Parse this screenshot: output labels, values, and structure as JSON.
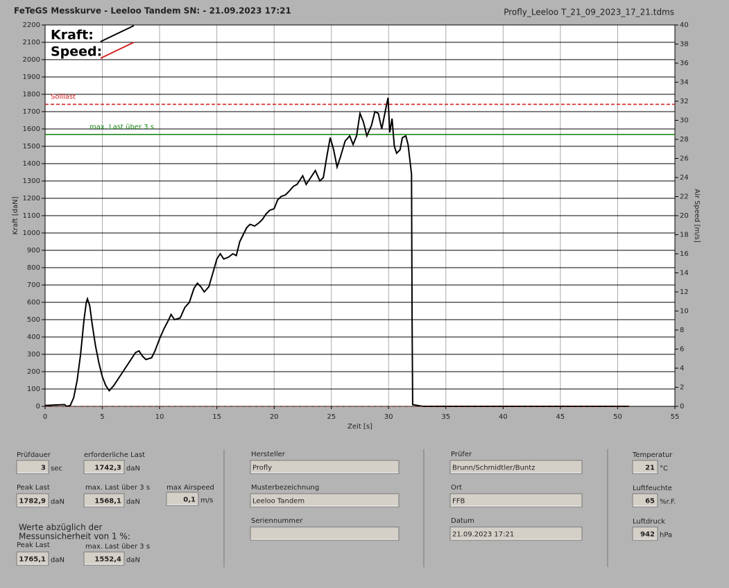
{
  "header": {
    "title": "FeTeGS Messkurve - Leeloo Tandem  SN:  - 21.09.2023 17:21",
    "file": "Profly_Leeloo T_21_09_2023_17_21.tdms"
  },
  "chart_data": {
    "type": "line",
    "xlabel": "Zeit [s]",
    "ylabel": "Kraft [daN]",
    "y2label": "Air Speed [m/s]",
    "xlim": [
      0,
      55
    ],
    "xticks": [
      0,
      5,
      10,
      15,
      20,
      25,
      30,
      35,
      40,
      45,
      50,
      55
    ],
    "ylim": [
      0,
      2200
    ],
    "yticks": [
      0,
      100,
      200,
      300,
      400,
      500,
      600,
      700,
      800,
      900,
      1000,
      1100,
      1200,
      1300,
      1400,
      1500,
      1600,
      1700,
      1800,
      1900,
      2000,
      2100,
      2200
    ],
    "y2lim": [
      0,
      40
    ],
    "y2ticks": [
      0,
      2,
      4,
      6,
      8,
      10,
      12,
      14,
      16,
      18,
      20,
      22,
      24,
      26,
      28,
      30,
      32,
      34,
      36,
      38,
      40
    ],
    "grid": true,
    "series": [
      {
        "name": "Kraft:",
        "color": "#000000",
        "x": [
          0,
          1,
          1.7,
          1.9,
          2.2,
          2.5,
          2.8,
          3.1,
          3.4,
          3.6,
          3.7,
          3.9,
          4.1,
          4.4,
          4.7,
          5,
          5.3,
          5.6,
          6,
          6.5,
          7,
          7.5,
          7.9,
          8.2,
          8.5,
          8.8,
          9.3,
          9.6,
          10,
          10.4,
          10.8,
          11,
          11.3,
          11.8,
          12.2,
          12.6,
          13,
          13.3,
          13.6,
          13.9,
          14.3,
          14.7,
          15,
          15.3,
          15.6,
          16,
          16.4,
          16.7,
          17,
          17.3,
          17.6,
          17.9,
          18.3,
          18.7,
          19,
          19.3,
          19.6,
          20,
          20.3,
          20.6,
          21,
          21.3,
          21.7,
          22,
          22.2,
          22.5,
          22.8,
          23.2,
          23.6,
          24,
          24.3,
          24.6,
          24.9,
          25.2,
          25.5,
          25.8,
          26.2,
          26.6,
          26.9,
          27.2,
          27.5,
          27.8,
          28.1,
          28.5,
          28.8,
          29.1,
          29.4,
          29.7,
          29.95,
          30.1,
          30.3,
          30.5,
          30.7,
          31,
          31.2,
          31.5,
          31.7,
          32,
          32.05,
          32.1,
          32.5,
          33,
          51
        ],
        "values": [
          5,
          8,
          10,
          0,
          5,
          50,
          150,
          300,
          500,
          600,
          620,
          580,
          480,
          350,
          250,
          170,
          120,
          90,
          120,
          170,
          220,
          270,
          310,
          320,
          290,
          270,
          280,
          320,
          390,
          450,
          500,
          530,
          500,
          510,
          570,
          600,
          680,
          710,
          690,
          660,
          690,
          780,
          850,
          880,
          850,
          860,
          880,
          870,
          950,
          990,
          1030,
          1050,
          1040,
          1060,
          1080,
          1110,
          1130,
          1140,
          1190,
          1210,
          1220,
          1240,
          1270,
          1280,
          1300,
          1330,
          1280,
          1320,
          1360,
          1300,
          1320,
          1440,
          1550,
          1480,
          1380,
          1440,
          1530,
          1560,
          1510,
          1560,
          1690,
          1640,
          1560,
          1620,
          1700,
          1690,
          1600,
          1700,
          1780,
          1580,
          1660,
          1500,
          1460,
          1480,
          1550,
          1560,
          1510,
          1340,
          500,
          10,
          5,
          0,
          0
        ]
      },
      {
        "name": "Speed:",
        "color": "#d42020",
        "axis": "y2",
        "x": [
          0,
          51
        ],
        "values": [
          0,
          0
        ]
      }
    ],
    "reference_lines": [
      {
        "label": "Solllast",
        "value": 1742.3,
        "color": "#d42020",
        "dashed": true
      },
      {
        "label": "max. Last über  3 s",
        "value": 1568.1,
        "color": "#1a8a1a",
        "dashed": false
      }
    ]
  },
  "panel": {
    "fields": [
      {
        "label": "Prüfdauer",
        "value": "3",
        "unit": "sec"
      },
      {
        "label": "erforderliche Last",
        "value": "1742,3",
        "unit": "daN"
      },
      {
        "label": "Peak Last",
        "value": "1782,9",
        "unit": "daN"
      },
      {
        "label": "max. Last über  3 s",
        "value": "1568,1",
        "unit": "daN"
      },
      {
        "label": "max Airspeed",
        "value": "0,1",
        "unit": "m/s"
      },
      {
        "label": "Peak Last",
        "value": "1765,1",
        "unit": "daN"
      },
      {
        "label": "max. Last über  3 s",
        "value": "1552,4",
        "unit": "daN"
      },
      {
        "label": "Hersteller",
        "value": "Profly"
      },
      {
        "label": "Musterbezeichnung",
        "value": "Leeloo Tandem"
      },
      {
        "label": "Seriennummer"
      },
      {
        "label": "Prüfer",
        "value": "Brunn/Schmidtler/Buntz"
      },
      {
        "label": "Ort",
        "value": "FFB"
      },
      {
        "label": "Datum",
        "value": "21.09.2023 17:21"
      },
      {
        "label": "Temperatur",
        "value": "21",
        "unit": "°C"
      },
      {
        "label": "Luftfeuchte",
        "value": "65",
        "unit": "%r.F."
      },
      {
        "label": "Luftdruck",
        "value": "942",
        "unit": "hPa"
      }
    ],
    "note": [
      "Werte abzüglich der",
      "Messunsicherheit von 1  %:"
    ]
  }
}
